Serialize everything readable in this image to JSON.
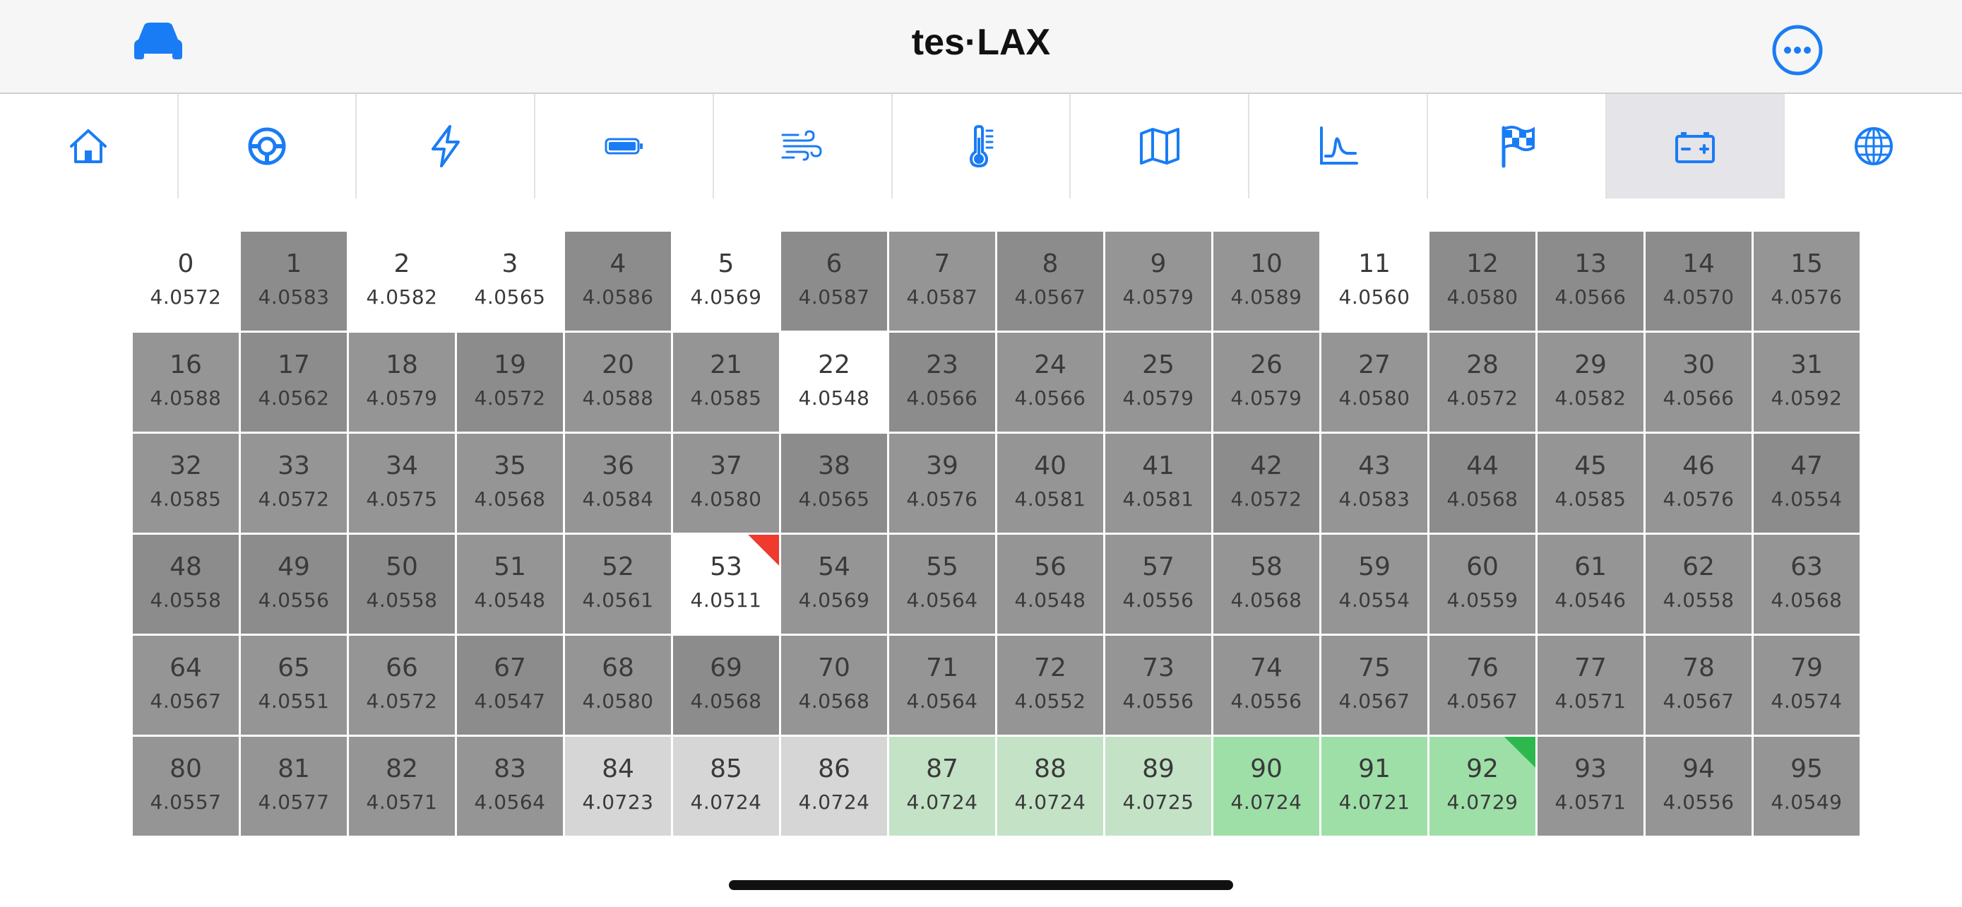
{
  "header": {
    "title": "tes·LAX",
    "left_icon": "car-icon",
    "right_icon": "more-icon",
    "accent_color": "#1a7cf5"
  },
  "tabs": [
    {
      "icon": "home-icon",
      "selected": false
    },
    {
      "icon": "steering-wheel-icon",
      "selected": false
    },
    {
      "icon": "bolt-icon",
      "selected": false
    },
    {
      "icon": "battery-icon",
      "selected": false
    },
    {
      "icon": "wind-icon",
      "selected": false
    },
    {
      "icon": "thermometer-icon",
      "selected": false
    },
    {
      "icon": "map-icon",
      "selected": false
    },
    {
      "icon": "chart-icon",
      "selected": false
    },
    {
      "icon": "flag-icon",
      "selected": false
    },
    {
      "icon": "car-battery-icon",
      "selected": true
    },
    {
      "icon": "globe-icon",
      "selected": false
    }
  ],
  "cells": [
    {
      "id": "0",
      "value": "4.0572",
      "color": "#ffffff"
    },
    {
      "id": "1",
      "value": "4.0583",
      "color": "#8c8c8c"
    },
    {
      "id": "2",
      "value": "4.0582",
      "color": "#ffffff"
    },
    {
      "id": "3",
      "value": "4.0565",
      "color": "#ffffff"
    },
    {
      "id": "4",
      "value": "4.0586",
      "color": "#8c8c8c"
    },
    {
      "id": "5",
      "value": "4.0569",
      "color": "#ffffff"
    },
    {
      "id": "6",
      "value": "4.0587",
      "color": "#8c8c8c"
    },
    {
      "id": "7",
      "value": "4.0587",
      "color": "#959595"
    },
    {
      "id": "8",
      "value": "4.0567",
      "color": "#8c8c8c"
    },
    {
      "id": "9",
      "value": "4.0579",
      "color": "#959595"
    },
    {
      "id": "10",
      "value": "4.0589",
      "color": "#959595"
    },
    {
      "id": "11",
      "value": "4.0560",
      "color": "#ffffff"
    },
    {
      "id": "12",
      "value": "4.0580",
      "color": "#8c8c8c"
    },
    {
      "id": "13",
      "value": "4.0566",
      "color": "#8c8c8c"
    },
    {
      "id": "14",
      "value": "4.0570",
      "color": "#8c8c8c"
    },
    {
      "id": "15",
      "value": "4.0576",
      "color": "#959595"
    },
    {
      "id": "16",
      "value": "4.0588",
      "color": "#959595"
    },
    {
      "id": "17",
      "value": "4.0562",
      "color": "#8c8c8c"
    },
    {
      "id": "18",
      "value": "4.0579",
      "color": "#959595"
    },
    {
      "id": "19",
      "value": "4.0572",
      "color": "#8c8c8c"
    },
    {
      "id": "20",
      "value": "4.0588",
      "color": "#959595"
    },
    {
      "id": "21",
      "value": "4.0585",
      "color": "#959595"
    },
    {
      "id": "22",
      "value": "4.0548",
      "color": "#ffffff"
    },
    {
      "id": "23",
      "value": "4.0566",
      "color": "#8c8c8c"
    },
    {
      "id": "24",
      "value": "4.0566",
      "color": "#959595"
    },
    {
      "id": "25",
      "value": "4.0579",
      "color": "#959595"
    },
    {
      "id": "26",
      "value": "4.0579",
      "color": "#959595"
    },
    {
      "id": "27",
      "value": "4.0580",
      "color": "#959595"
    },
    {
      "id": "28",
      "value": "4.0572",
      "color": "#959595"
    },
    {
      "id": "29",
      "value": "4.0582",
      "color": "#959595"
    },
    {
      "id": "30",
      "value": "4.0566",
      "color": "#959595"
    },
    {
      "id": "31",
      "value": "4.0592",
      "color": "#959595"
    },
    {
      "id": "32",
      "value": "4.0585",
      "color": "#959595"
    },
    {
      "id": "33",
      "value": "4.0572",
      "color": "#959595"
    },
    {
      "id": "34",
      "value": "4.0575",
      "color": "#959595"
    },
    {
      "id": "35",
      "value": "4.0568",
      "color": "#959595"
    },
    {
      "id": "36",
      "value": "4.0584",
      "color": "#959595"
    },
    {
      "id": "37",
      "value": "4.0580",
      "color": "#959595"
    },
    {
      "id": "38",
      "value": "4.0565",
      "color": "#8c8c8c"
    },
    {
      "id": "39",
      "value": "4.0576",
      "color": "#959595"
    },
    {
      "id": "40",
      "value": "4.0581",
      "color": "#959595"
    },
    {
      "id": "41",
      "value": "4.0581",
      "color": "#959595"
    },
    {
      "id": "42",
      "value": "4.0572",
      "color": "#8c8c8c"
    },
    {
      "id": "43",
      "value": "4.0583",
      "color": "#959595"
    },
    {
      "id": "44",
      "value": "4.0568",
      "color": "#8c8c8c"
    },
    {
      "id": "45",
      "value": "4.0585",
      "color": "#959595"
    },
    {
      "id": "46",
      "value": "4.0576",
      "color": "#959595"
    },
    {
      "id": "47",
      "value": "4.0554",
      "color": "#8c8c8c"
    },
    {
      "id": "48",
      "value": "4.0558",
      "color": "#8c8c8c"
    },
    {
      "id": "49",
      "value": "4.0556",
      "color": "#8c8c8c"
    },
    {
      "id": "50",
      "value": "4.0558",
      "color": "#8c8c8c"
    },
    {
      "id": "51",
      "value": "4.0548",
      "color": "#959595"
    },
    {
      "id": "52",
      "value": "4.0561",
      "color": "#959595"
    },
    {
      "id": "53",
      "value": "4.0511",
      "color": "#ffffff",
      "corner": "red"
    },
    {
      "id": "54",
      "value": "4.0569",
      "color": "#959595"
    },
    {
      "id": "55",
      "value": "4.0564",
      "color": "#959595"
    },
    {
      "id": "56",
      "value": "4.0548",
      "color": "#959595"
    },
    {
      "id": "57",
      "value": "4.0556",
      "color": "#959595"
    },
    {
      "id": "58",
      "value": "4.0568",
      "color": "#959595"
    },
    {
      "id": "59",
      "value": "4.0554",
      "color": "#959595"
    },
    {
      "id": "60",
      "value": "4.0559",
      "color": "#959595"
    },
    {
      "id": "61",
      "value": "4.0546",
      "color": "#959595"
    },
    {
      "id": "62",
      "value": "4.0558",
      "color": "#959595"
    },
    {
      "id": "63",
      "value": "4.0568",
      "color": "#959595"
    },
    {
      "id": "64",
      "value": "4.0567",
      "color": "#959595"
    },
    {
      "id": "65",
      "value": "4.0551",
      "color": "#959595"
    },
    {
      "id": "66",
      "value": "4.0572",
      "color": "#959595"
    },
    {
      "id": "67",
      "value": "4.0547",
      "color": "#8c8c8c"
    },
    {
      "id": "68",
      "value": "4.0580",
      "color": "#959595"
    },
    {
      "id": "69",
      "value": "4.0568",
      "color": "#8c8c8c"
    },
    {
      "id": "70",
      "value": "4.0568",
      "color": "#959595"
    },
    {
      "id": "71",
      "value": "4.0564",
      "color": "#959595"
    },
    {
      "id": "72",
      "value": "4.0552",
      "color": "#959595"
    },
    {
      "id": "73",
      "value": "4.0556",
      "color": "#959595"
    },
    {
      "id": "74",
      "value": "4.0556",
      "color": "#959595"
    },
    {
      "id": "75",
      "value": "4.0567",
      "color": "#959595"
    },
    {
      "id": "76",
      "value": "4.0567",
      "color": "#959595"
    },
    {
      "id": "77",
      "value": "4.0571",
      "color": "#959595"
    },
    {
      "id": "78",
      "value": "4.0567",
      "color": "#959595"
    },
    {
      "id": "79",
      "value": "4.0574",
      "color": "#959595"
    },
    {
      "id": "80",
      "value": "4.0557",
      "color": "#959595"
    },
    {
      "id": "81",
      "value": "4.0577",
      "color": "#959595"
    },
    {
      "id": "82",
      "value": "4.0571",
      "color": "#959595"
    },
    {
      "id": "83",
      "value": "4.0564",
      "color": "#959595"
    },
    {
      "id": "84",
      "value": "4.0723",
      "color": "#d6d6d6"
    },
    {
      "id": "85",
      "value": "4.0724",
      "color": "#d6d6d6"
    },
    {
      "id": "86",
      "value": "4.0724",
      "color": "#d6d6d6"
    },
    {
      "id": "87",
      "value": "4.0724",
      "color": "#c3e2c6"
    },
    {
      "id": "88",
      "value": "4.0724",
      "color": "#c3e2c6"
    },
    {
      "id": "89",
      "value": "4.0725",
      "color": "#c3e2c6"
    },
    {
      "id": "90",
      "value": "4.0724",
      "color": "#9edfa8"
    },
    {
      "id": "91",
      "value": "4.0721",
      "color": "#9edfa8"
    },
    {
      "id": "92",
      "value": "4.0729",
      "color": "#9edfa8",
      "corner": "green"
    },
    {
      "id": "93",
      "value": "4.0571",
      "color": "#959595"
    },
    {
      "id": "94",
      "value": "4.0556",
      "color": "#959595"
    },
    {
      "id": "95",
      "value": "4.0549",
      "color": "#959595"
    }
  ]
}
